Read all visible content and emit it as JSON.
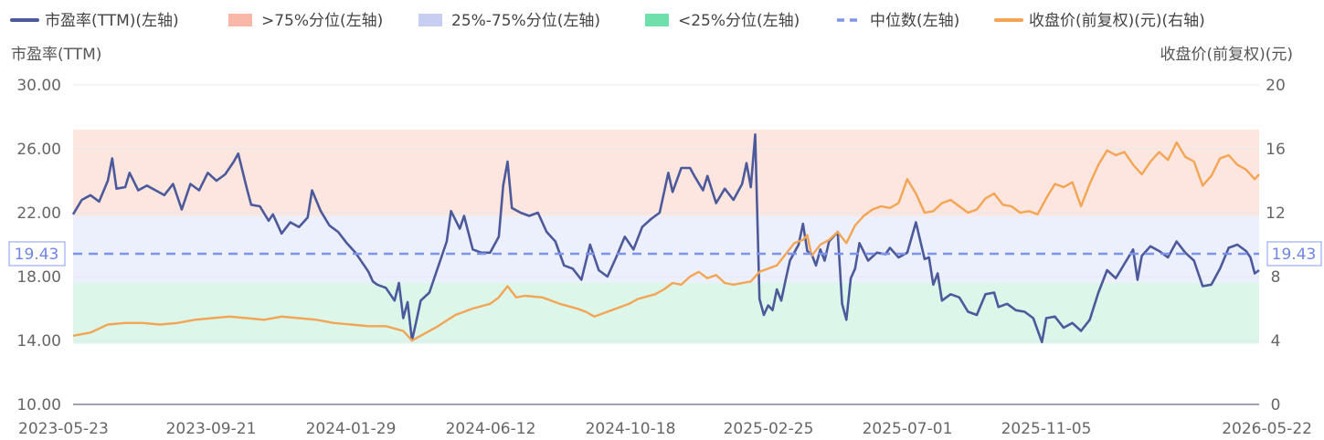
{
  "chart_data": {
    "type": "line",
    "legend": [
      {
        "key": "pe",
        "label": "市盈率(TTM)(左轴)",
        "color": "#4c5a9b",
        "symbol": "line"
      },
      {
        "key": "high",
        "label": ">75%分位(左轴)",
        "color": "#f8b7a7",
        "symbol": "rect"
      },
      {
        "key": "mid",
        "label": "25%-75%分位(左轴)",
        "color": "#c8cdf2",
        "symbol": "rect"
      },
      {
        "key": "low",
        "label": "<25%分位(左轴)",
        "color": "#6fe0ab",
        "symbol": "rect"
      },
      {
        "key": "median",
        "label": "中位数(左轴)",
        "color": "#7e93ea",
        "symbol": "dash"
      },
      {
        "key": "price",
        "label": "收盘价(前复权)(元)(右轴)",
        "color": "#f4a553",
        "symbol": "line"
      }
    ],
    "left_axis": {
      "label": "市盈率(TTM)",
      "min": 10,
      "max": 30,
      "ticks": [
        "10.00",
        "14.00",
        "18.00",
        "22.00",
        "26.00",
        "30.00"
      ]
    },
    "right_axis": {
      "label": "收盘价(前复权)(元)",
      "min": 0,
      "max": 20,
      "ticks": [
        "0",
        "4",
        "8",
        "12",
        "16",
        "20"
      ]
    },
    "x_labels": [
      "2023-05-23",
      "2023-09-21",
      "2024-01-29",
      "2024-06-12",
      "2024-10-18",
      "2025-02-25",
      "2025-07-01",
      "2025-11-05",
      "2026-05-22"
    ],
    "bands": [
      {
        "name": ">75%分位",
        "from": 21.8,
        "to": 27.2,
        "color": "#fde6df"
      },
      {
        "name": "25%-75%分位",
        "from": 17.6,
        "to": 21.8,
        "color": "#eceffc"
      },
      {
        "name": "<25%分位",
        "from": 13.8,
        "to": 17.6,
        "color": "#dcf6ea"
      }
    ],
    "median": {
      "value": 19.43,
      "label": "19.43"
    },
    "series": [
      {
        "name": "市盈率(TTM)(左轴)",
        "axis": "left",
        "color": "#4c5a9b",
        "points": [
          [
            0,
            21.9
          ],
          [
            2,
            22.8
          ],
          [
            4,
            23.1
          ],
          [
            6,
            22.7
          ],
          [
            8,
            24.0
          ],
          [
            9,
            25.4
          ],
          [
            10,
            23.5
          ],
          [
            12,
            23.6
          ],
          [
            13,
            24.5
          ],
          [
            15,
            23.4
          ],
          [
            17,
            23.7
          ],
          [
            19,
            23.4
          ],
          [
            21,
            23.1
          ],
          [
            23,
            23.8
          ],
          [
            25,
            22.2
          ],
          [
            27,
            23.8
          ],
          [
            29,
            23.4
          ],
          [
            31,
            24.5
          ],
          [
            33,
            24.0
          ],
          [
            35,
            24.4
          ],
          [
            37,
            25.2
          ],
          [
            38,
            25.7
          ],
          [
            40,
            23.5
          ],
          [
            41,
            22.5
          ],
          [
            43,
            22.4
          ],
          [
            45,
            21.5
          ],
          [
            46,
            21.9
          ],
          [
            48,
            20.7
          ],
          [
            50,
            21.4
          ],
          [
            52,
            21.1
          ],
          [
            54,
            21.7
          ],
          [
            55,
            23.4
          ],
          [
            57,
            22.1
          ],
          [
            59,
            21.2
          ],
          [
            61,
            20.8
          ],
          [
            63,
            20.1
          ],
          [
            65,
            19.5
          ],
          [
            67,
            18.7
          ],
          [
            68,
            18.3
          ],
          [
            69,
            17.7
          ],
          [
            70,
            17.5
          ],
          [
            72,
            17.3
          ],
          [
            74,
            16.5
          ],
          [
            75,
            17.6
          ],
          [
            76,
            15.4
          ],
          [
            77,
            16.4
          ],
          [
            78,
            14.0
          ],
          [
            79,
            15.2
          ],
          [
            80,
            16.5
          ],
          [
            82,
            17.0
          ],
          [
            84,
            18.6
          ],
          [
            86,
            20.2
          ],
          [
            87,
            22.1
          ],
          [
            89,
            21.0
          ],
          [
            90,
            21.8
          ],
          [
            92,
            19.7
          ],
          [
            94,
            19.5
          ],
          [
            96,
            19.5
          ],
          [
            98,
            20.5
          ],
          [
            99,
            23.7
          ],
          [
            100,
            25.2
          ],
          [
            101,
            22.3
          ],
          [
            103,
            22.0
          ],
          [
            105,
            21.8
          ],
          [
            107,
            22.0
          ],
          [
            109,
            20.8
          ],
          [
            111,
            20.2
          ],
          [
            113,
            18.7
          ],
          [
            115,
            18.5
          ],
          [
            117,
            17.8
          ],
          [
            119,
            20.0
          ],
          [
            121,
            18.4
          ],
          [
            123,
            18.0
          ],
          [
            125,
            19.2
          ],
          [
            127,
            20.5
          ],
          [
            129,
            19.7
          ],
          [
            131,
            21.1
          ],
          [
            133,
            21.6
          ],
          [
            135,
            22.0
          ],
          [
            137,
            24.5
          ],
          [
            138,
            23.3
          ],
          [
            140,
            24.8
          ],
          [
            142,
            24.8
          ],
          [
            143,
            24.3
          ],
          [
            145,
            23.4
          ],
          [
            146,
            24.3
          ],
          [
            148,
            22.6
          ],
          [
            150,
            23.5
          ],
          [
            152,
            22.8
          ],
          [
            154,
            23.8
          ],
          [
            155,
            25.1
          ],
          [
            156,
            23.6
          ],
          [
            157,
            26.9
          ],
          [
            158,
            16.6
          ],
          [
            159,
            15.6
          ],
          [
            160,
            16.2
          ],
          [
            161,
            15.9
          ],
          [
            162,
            17.2
          ],
          [
            163,
            16.5
          ],
          [
            164,
            17.8
          ],
          [
            165,
            19.0
          ],
          [
            167,
            20.0
          ],
          [
            168,
            21.3
          ],
          [
            169,
            19.6
          ],
          [
            170,
            19.4
          ],
          [
            171,
            18.7
          ],
          [
            172,
            19.7
          ],
          [
            173,
            19.0
          ],
          [
            174,
            20.2
          ],
          [
            176,
            20.8
          ],
          [
            177,
            16.3
          ],
          [
            178,
            15.3
          ],
          [
            179,
            17.9
          ],
          [
            180,
            18.5
          ],
          [
            181,
            20.1
          ],
          [
            183,
            19.0
          ],
          [
            185,
            19.5
          ],
          [
            187,
            19.4
          ],
          [
            188,
            19.8
          ],
          [
            190,
            19.2
          ],
          [
            192,
            19.5
          ],
          [
            194,
            21.4
          ],
          [
            196,
            19.1
          ],
          [
            197,
            19.2
          ],
          [
            198,
            17.5
          ],
          [
            199,
            18.2
          ],
          [
            200,
            16.5
          ],
          [
            202,
            16.9
          ],
          [
            204,
            16.7
          ],
          [
            206,
            15.8
          ],
          [
            208,
            15.6
          ],
          [
            210,
            16.9
          ],
          [
            212,
            17.0
          ],
          [
            213,
            16.1
          ],
          [
            215,
            16.3
          ],
          [
            217,
            15.9
          ],
          [
            219,
            15.8
          ],
          [
            221,
            15.4
          ],
          [
            223,
            13.9
          ],
          [
            224,
            15.4
          ],
          [
            226,
            15.5
          ],
          [
            228,
            14.8
          ],
          [
            230,
            15.1
          ],
          [
            232,
            14.6
          ],
          [
            234,
            15.3
          ],
          [
            236,
            17.0
          ],
          [
            238,
            18.4
          ],
          [
            240,
            17.9
          ],
          [
            242,
            18.8
          ],
          [
            244,
            19.7
          ],
          [
            245,
            17.8
          ],
          [
            246,
            19.3
          ],
          [
            248,
            19.9
          ],
          [
            250,
            19.6
          ],
          [
            252,
            19.2
          ],
          [
            254,
            20.2
          ],
          [
            256,
            19.5
          ],
          [
            258,
            19.0
          ],
          [
            260,
            17.4
          ],
          [
            262,
            17.5
          ],
          [
            264,
            18.5
          ],
          [
            266,
            19.8
          ],
          [
            268,
            20.0
          ],
          [
            270,
            19.6
          ],
          [
            271,
            19.2
          ],
          [
            272,
            18.2
          ],
          [
            273,
            18.4
          ]
        ]
      },
      {
        "name": "收盘价(前复权)(元)(右轴)",
        "axis": "right",
        "color": "#f4a553",
        "points": [
          [
            0,
            4.3
          ],
          [
            4,
            4.5
          ],
          [
            8,
            5.0
          ],
          [
            12,
            5.1
          ],
          [
            16,
            5.1
          ],
          [
            20,
            5.0
          ],
          [
            24,
            5.1
          ],
          [
            28,
            5.3
          ],
          [
            32,
            5.4
          ],
          [
            36,
            5.5
          ],
          [
            40,
            5.4
          ],
          [
            44,
            5.3
          ],
          [
            48,
            5.5
          ],
          [
            52,
            5.4
          ],
          [
            56,
            5.3
          ],
          [
            60,
            5.1
          ],
          [
            64,
            5.0
          ],
          [
            68,
            4.9
          ],
          [
            72,
            4.9
          ],
          [
            76,
            4.6
          ],
          [
            78,
            4.0
          ],
          [
            80,
            4.3
          ],
          [
            84,
            4.9
          ],
          [
            88,
            5.6
          ],
          [
            92,
            6.0
          ],
          [
            96,
            6.3
          ],
          [
            98,
            6.7
          ],
          [
            100,
            7.4
          ],
          [
            102,
            6.7
          ],
          [
            104,
            6.8
          ],
          [
            108,
            6.7
          ],
          [
            112,
            6.3
          ],
          [
            116,
            6.0
          ],
          [
            118,
            5.8
          ],
          [
            120,
            5.5
          ],
          [
            122,
            5.7
          ],
          [
            124,
            5.9
          ],
          [
            128,
            6.3
          ],
          [
            130,
            6.6
          ],
          [
            134,
            6.9
          ],
          [
            136,
            7.2
          ],
          [
            138,
            7.6
          ],
          [
            140,
            7.5
          ],
          [
            142,
            8.0
          ],
          [
            144,
            8.3
          ],
          [
            146,
            7.9
          ],
          [
            148,
            8.1
          ],
          [
            150,
            7.6
          ],
          [
            152,
            7.5
          ],
          [
            156,
            7.7
          ],
          [
            158,
            8.3
          ],
          [
            160,
            8.5
          ],
          [
            162,
            8.7
          ],
          [
            164,
            9.4
          ],
          [
            166,
            10.1
          ],
          [
            168,
            10.3
          ],
          [
            169,
            10.6
          ],
          [
            170,
            9.3
          ],
          [
            172,
            10.0
          ],
          [
            174,
            10.3
          ],
          [
            176,
            10.8
          ],
          [
            178,
            10.1
          ],
          [
            180,
            11.2
          ],
          [
            182,
            11.8
          ],
          [
            184,
            12.2
          ],
          [
            186,
            12.4
          ],
          [
            188,
            12.3
          ],
          [
            190,
            12.6
          ],
          [
            192,
            14.1
          ],
          [
            194,
            13.2
          ],
          [
            196,
            12.0
          ],
          [
            198,
            12.1
          ],
          [
            200,
            12.6
          ],
          [
            202,
            12.8
          ],
          [
            204,
            12.4
          ],
          [
            206,
            12.0
          ],
          [
            208,
            12.2
          ],
          [
            210,
            12.9
          ],
          [
            212,
            13.2
          ],
          [
            214,
            12.5
          ],
          [
            216,
            12.4
          ],
          [
            218,
            12.0
          ],
          [
            220,
            12.1
          ],
          [
            222,
            11.9
          ],
          [
            224,
            12.9
          ],
          [
            226,
            13.8
          ],
          [
            228,
            13.6
          ],
          [
            230,
            13.9
          ],
          [
            232,
            12.4
          ],
          [
            234,
            13.8
          ],
          [
            236,
            15.0
          ],
          [
            238,
            15.9
          ],
          [
            240,
            15.6
          ],
          [
            242,
            15.8
          ],
          [
            244,
            15.0
          ],
          [
            246,
            14.4
          ],
          [
            248,
            15.2
          ],
          [
            250,
            15.8
          ],
          [
            252,
            15.3
          ],
          [
            254,
            16.4
          ],
          [
            256,
            15.5
          ],
          [
            258,
            15.2
          ],
          [
            260,
            13.7
          ],
          [
            262,
            14.3
          ],
          [
            264,
            15.4
          ],
          [
            266,
            15.6
          ],
          [
            268,
            15.0
          ],
          [
            270,
            14.7
          ],
          [
            272,
            14.1
          ],
          [
            273,
            14.4
          ]
        ]
      }
    ]
  }
}
